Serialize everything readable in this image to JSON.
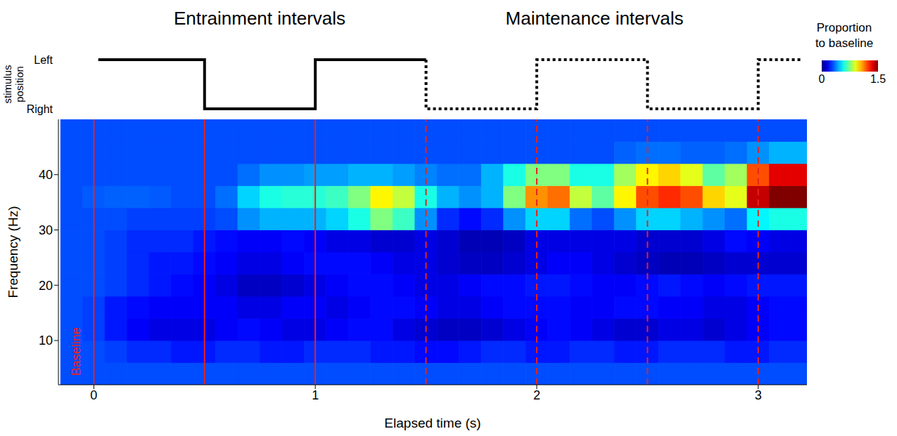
{
  "chart_data": {
    "type": "heatmap",
    "section_titles": [
      "Entrainment intervals",
      "Maintenance intervals"
    ],
    "x_label": "Elapsed time (s)",
    "y_label": "Frequency (Hz)",
    "xlim": [
      -0.16,
      3.22
    ],
    "xticks": [
      0,
      1,
      2,
      3
    ],
    "ylim": [
      2,
      50
    ],
    "yticks": [
      10,
      20,
      30,
      40
    ],
    "x": [
      -0.1,
      0,
      0.1,
      0.2,
      0.3,
      0.4,
      0.5,
      0.6,
      0.7,
      0.8,
      0.9,
      1.0,
      1.1,
      1.2,
      1.3,
      1.4,
      1.5,
      1.6,
      1.7,
      1.8,
      1.9,
      2.0,
      2.1,
      2.2,
      2.3,
      2.4,
      2.5,
      2.6,
      2.7,
      2.8,
      2.9,
      3.0,
      3.1,
      3.2
    ],
    "y": [
      4,
      8,
      12,
      16,
      20,
      24,
      28,
      32,
      36,
      40,
      44,
      48
    ],
    "cells": [
      [
        0.3,
        0.3,
        0.3,
        0.3,
        0.3,
        0.3,
        0.3,
        0.3,
        0.3,
        0.3,
        0.3,
        0.3,
        0.3,
        0.3,
        0.3,
        0.3,
        0.3,
        0.3,
        0.3,
        0.3,
        0.3,
        0.3,
        0.3,
        0.3,
        0.3,
        0.3,
        0.3,
        0.3,
        0.3,
        0.3,
        0.3,
        0.3,
        0.3,
        0.3
      ],
      [
        0.3,
        0.3,
        0.28,
        0.25,
        0.25,
        0.22,
        0.22,
        0.25,
        0.25,
        0.22,
        0.22,
        0.25,
        0.25,
        0.25,
        0.22,
        0.22,
        0.2,
        0.2,
        0.22,
        0.25,
        0.25,
        0.22,
        0.22,
        0.25,
        0.25,
        0.22,
        0.22,
        0.25,
        0.25,
        0.25,
        0.22,
        0.22,
        0.25,
        0.25
      ],
      [
        0.3,
        0.28,
        0.22,
        0.18,
        0.15,
        0.15,
        0.15,
        0.18,
        0.2,
        0.18,
        0.15,
        0.15,
        0.18,
        0.2,
        0.2,
        0.15,
        0.12,
        0.1,
        0.1,
        0.12,
        0.15,
        0.18,
        0.2,
        0.18,
        0.15,
        0.12,
        0.12,
        0.15,
        0.15,
        0.12,
        0.15,
        0.18,
        0.2,
        0.2
      ],
      [
        0.3,
        0.28,
        0.22,
        0.2,
        0.18,
        0.18,
        0.18,
        0.18,
        0.15,
        0.15,
        0.18,
        0.18,
        0.15,
        0.18,
        0.2,
        0.2,
        0.18,
        0.15,
        0.15,
        0.18,
        0.2,
        0.2,
        0.2,
        0.18,
        0.18,
        0.2,
        0.2,
        0.18,
        0.18,
        0.15,
        0.15,
        0.18,
        0.2,
        0.2
      ],
      [
        0.3,
        0.3,
        0.28,
        0.25,
        0.22,
        0.2,
        0.18,
        0.15,
        0.1,
        0.1,
        0.12,
        0.15,
        0.18,
        0.2,
        0.2,
        0.18,
        0.15,
        0.15,
        0.18,
        0.2,
        0.2,
        0.22,
        0.22,
        0.2,
        0.18,
        0.18,
        0.2,
        0.22,
        0.2,
        0.18,
        0.2,
        0.22,
        0.22,
        0.22
      ],
      [
        0.3,
        0.3,
        0.28,
        0.25,
        0.22,
        0.22,
        0.2,
        0.18,
        0.15,
        0.15,
        0.18,
        0.2,
        0.2,
        0.2,
        0.18,
        0.15,
        0.15,
        0.12,
        0.1,
        0.1,
        0.12,
        0.15,
        0.18,
        0.18,
        0.15,
        0.12,
        0.1,
        0.08,
        0.08,
        0.1,
        0.12,
        0.12,
        0.12,
        0.12
      ],
      [
        0.3,
        0.3,
        0.28,
        0.25,
        0.25,
        0.25,
        0.22,
        0.2,
        0.18,
        0.18,
        0.2,
        0.18,
        0.15,
        0.15,
        0.12,
        0.12,
        0.15,
        0.12,
        0.08,
        0.08,
        0.1,
        0.15,
        0.15,
        0.15,
        0.15,
        0.15,
        0.12,
        0.12,
        0.12,
        0.15,
        0.2,
        0.18,
        0.15,
        0.15
      ],
      [
        0.3,
        0.3,
        0.3,
        0.28,
        0.28,
        0.28,
        0.28,
        0.3,
        0.4,
        0.45,
        0.45,
        0.45,
        0.5,
        0.6,
        0.75,
        0.65,
        0.4,
        0.25,
        0.2,
        0.25,
        0.4,
        0.5,
        0.5,
        0.35,
        0.3,
        0.4,
        0.5,
        0.5,
        0.45,
        0.4,
        0.35,
        0.55,
        0.6,
        0.6
      ],
      [
        0.3,
        0.32,
        0.33,
        0.33,
        0.32,
        0.3,
        0.3,
        0.35,
        0.5,
        0.6,
        0.62,
        0.62,
        0.65,
        0.75,
        0.95,
        0.85,
        0.6,
        0.45,
        0.4,
        0.45,
        0.75,
        1.1,
        1.15,
        0.85,
        0.7,
        0.95,
        1.2,
        1.25,
        1.2,
        1.0,
        0.9,
        1.4,
        1.5,
        1.5
      ],
      [
        0.3,
        0.3,
        0.3,
        0.3,
        0.3,
        0.3,
        0.3,
        0.3,
        0.35,
        0.4,
        0.4,
        0.42,
        0.42,
        0.45,
        0.45,
        0.42,
        0.38,
        0.35,
        0.35,
        0.45,
        0.6,
        0.75,
        0.75,
        0.6,
        0.6,
        0.8,
        0.95,
        1.0,
        0.9,
        0.7,
        0.8,
        1.2,
        1.35,
        1.35
      ],
      [
        0.3,
        0.3,
        0.3,
        0.3,
        0.3,
        0.3,
        0.3,
        0.3,
        0.3,
        0.3,
        0.3,
        0.3,
        0.3,
        0.3,
        0.3,
        0.3,
        0.3,
        0.3,
        0.3,
        0.3,
        0.3,
        0.3,
        0.3,
        0.3,
        0.3,
        0.33,
        0.35,
        0.35,
        0.33,
        0.33,
        0.35,
        0.4,
        0.45,
        0.45
      ],
      [
        0.3,
        0.3,
        0.3,
        0.3,
        0.3,
        0.3,
        0.3,
        0.3,
        0.3,
        0.3,
        0.3,
        0.3,
        0.3,
        0.3,
        0.3,
        0.3,
        0.3,
        0.3,
        0.3,
        0.3,
        0.3,
        0.3,
        0.3,
        0.3,
        0.3,
        0.3,
        0.3,
        0.3,
        0.3,
        0.3,
        0.3,
        0.3,
        0.3,
        0.3
      ]
    ],
    "colorbar": {
      "label": "Proportion to baseline",
      "range": [
        0,
        1.5
      ],
      "ticks": [
        0,
        1.5
      ]
    },
    "markers": [
      {
        "x": 0,
        "line_style": "solid",
        "color": "#e8231c"
      },
      {
        "x": 0.5,
        "line_style": "solid",
        "color": "#e8231c"
      },
      {
        "x": 1,
        "line_style": "solid",
        "color": "#e8231c"
      },
      {
        "x": 1.5,
        "line_style": "dashed",
        "color": "#e8231c"
      },
      {
        "x": 2,
        "line_style": "dashed",
        "color": "#e8231c"
      },
      {
        "x": 2.5,
        "line_style": "dashed",
        "color": "#e8231c"
      },
      {
        "x": 3,
        "line_style": "dashed",
        "color": "#e8231c"
      }
    ],
    "annotations": [
      {
        "text": "Baseline",
        "x": -0.08,
        "y": 8,
        "color": "#e8231c"
      }
    ],
    "stimulus": {
      "label": "stimulus position",
      "levels": [
        "Right",
        "Left"
      ],
      "series": [
        {
          "x": [
            0.02,
            0.5,
            1,
            1.5
          ],
          "values": [
            "Left",
            "Right",
            "Left",
            "Left"
          ],
          "line_style": "solid",
          "color": "#000000"
        },
        {
          "x": [
            1.5,
            1.5,
            2,
            2.5,
            3,
            3.2
          ],
          "values": [
            "Left",
            "Right",
            "Left",
            "Right",
            "Left",
            "Left"
          ],
          "line_style": "dashed",
          "color": "#000000"
        }
      ]
    }
  }
}
